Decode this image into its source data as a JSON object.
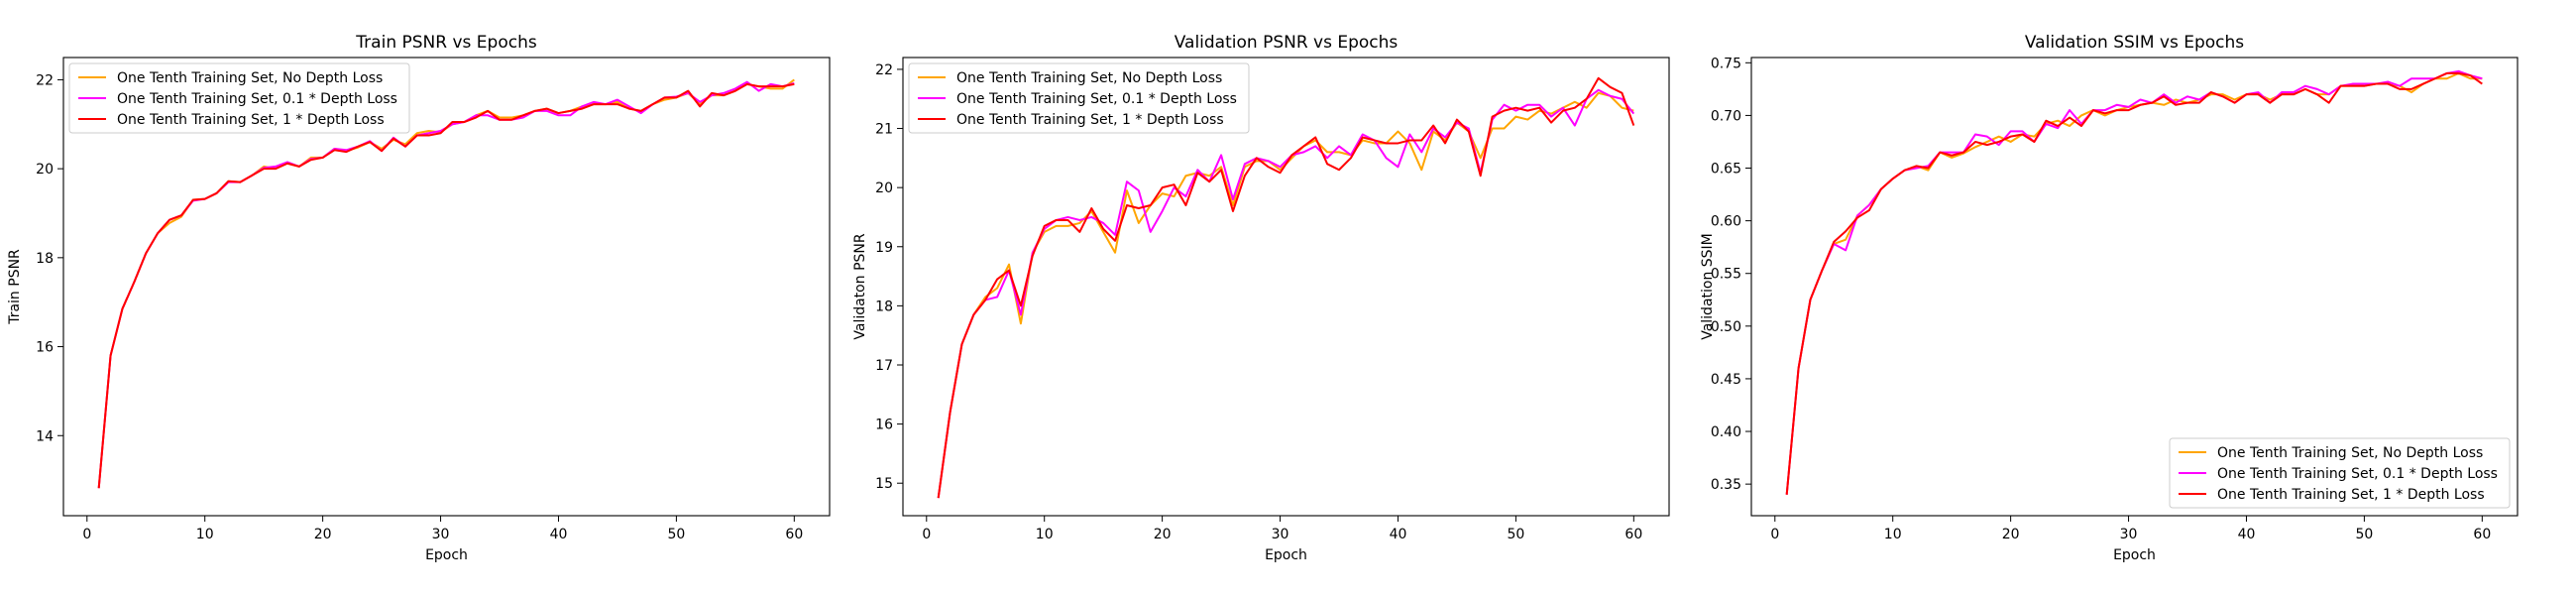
{
  "colors": {
    "no_depth": "#ffa500",
    "depth_01": "#ff00ff",
    "depth_1": "#ff0000"
  },
  "chart_data": [
    {
      "type": "line",
      "title": "Train PSNR vs Epochs",
      "xlabel": "Epoch",
      "ylabel": "Train PSNR",
      "xlim": [
        -2,
        63
      ],
      "ylim": [
        12.2,
        22.5
      ],
      "xticks": [
        0,
        10,
        20,
        30,
        40,
        50,
        60
      ],
      "yticks": [
        14,
        16,
        18,
        20,
        22
      ],
      "ytick_labels": [
        "14",
        "16",
        "18",
        "20",
        "22"
      ],
      "legend_position": "top-left",
      "x": [
        1,
        2,
        3,
        4,
        5,
        6,
        7,
        8,
        9,
        10,
        11,
        12,
        13,
        14,
        15,
        16,
        17,
        18,
        19,
        20,
        21,
        22,
        23,
        24,
        25,
        26,
        27,
        28,
        29,
        30,
        31,
        32,
        33,
        34,
        35,
        36,
        37,
        38,
        39,
        40,
        41,
        42,
        43,
        44,
        45,
        46,
        47,
        48,
        49,
        50,
        51,
        52,
        53,
        54,
        55,
        56,
        57,
        58,
        59,
        60
      ],
      "series": [
        {
          "name": "One Tenth Training Set, No Depth Loss",
          "values": [
            12.82,
            15.8,
            16.85,
            17.45,
            18.1,
            18.55,
            18.78,
            18.92,
            19.3,
            19.32,
            19.45,
            19.72,
            19.7,
            19.85,
            20.05,
            20.0,
            20.12,
            20.05,
            20.25,
            20.25,
            20.45,
            20.4,
            20.48,
            20.6,
            20.45,
            20.65,
            20.55,
            20.8,
            20.85,
            20.82,
            21.0,
            21.05,
            21.2,
            21.3,
            21.15,
            21.15,
            21.2,
            21.3,
            21.35,
            21.25,
            21.3,
            21.4,
            21.45,
            21.45,
            21.5,
            21.35,
            21.3,
            21.45,
            21.55,
            21.6,
            21.7,
            21.45,
            21.65,
            21.65,
            21.75,
            21.9,
            21.85,
            21.8,
            21.8,
            22.0
          ]
        },
        {
          "name": "One Tenth Training Set, 0.1 * Depth Loss",
          "values": [
            12.82,
            15.8,
            16.85,
            17.45,
            18.1,
            18.55,
            18.85,
            18.95,
            19.28,
            19.32,
            19.45,
            19.7,
            19.7,
            19.85,
            20.02,
            20.05,
            20.15,
            20.05,
            20.22,
            20.25,
            20.45,
            20.42,
            20.5,
            20.62,
            20.4,
            20.7,
            20.5,
            20.75,
            20.8,
            20.85,
            21.0,
            21.05,
            21.2,
            21.2,
            21.1,
            21.1,
            21.15,
            21.3,
            21.3,
            21.2,
            21.2,
            21.4,
            21.5,
            21.45,
            21.55,
            21.4,
            21.25,
            21.45,
            21.6,
            21.62,
            21.7,
            21.5,
            21.65,
            21.7,
            21.8,
            21.95,
            21.75,
            21.9,
            21.85,
            21.92
          ]
        },
        {
          "name": "One Tenth Training Set, 1 * Depth Loss",
          "values": [
            12.82,
            15.8,
            16.85,
            17.45,
            18.1,
            18.55,
            18.85,
            18.95,
            19.3,
            19.32,
            19.45,
            19.72,
            19.7,
            19.85,
            20.0,
            20.0,
            20.12,
            20.05,
            20.2,
            20.25,
            20.42,
            20.38,
            20.5,
            20.6,
            20.4,
            20.68,
            20.5,
            20.75,
            20.75,
            20.8,
            21.05,
            21.05,
            21.15,
            21.3,
            21.1,
            21.1,
            21.2,
            21.3,
            21.35,
            21.25,
            21.3,
            21.35,
            21.45,
            21.45,
            21.45,
            21.35,
            21.3,
            21.45,
            21.6,
            21.6,
            21.75,
            21.4,
            21.7,
            21.65,
            21.75,
            21.9,
            21.85,
            21.85,
            21.85,
            21.9
          ]
        }
      ]
    },
    {
      "type": "line",
      "title": "Validation PSNR vs Epochs",
      "xlabel": "Epoch",
      "ylabel": "Validaton PSNR",
      "xlim": [
        -2,
        63
      ],
      "ylim": [
        14.45,
        22.2
      ],
      "xticks": [
        0,
        10,
        20,
        30,
        40,
        50,
        60
      ],
      "yticks": [
        15,
        16,
        17,
        18,
        19,
        20,
        21,
        22
      ],
      "ytick_labels": [
        "15",
        "16",
        "17",
        "18",
        "19",
        "20",
        "21",
        "22"
      ],
      "legend_position": "top-left",
      "x": [
        1,
        2,
        3,
        4,
        5,
        6,
        7,
        8,
        9,
        10,
        11,
        12,
        13,
        14,
        15,
        16,
        17,
        18,
        19,
        20,
        21,
        22,
        23,
        24,
        25,
        26,
        27,
        28,
        29,
        30,
        31,
        32,
        33,
        34,
        35,
        36,
        37,
        38,
        39,
        40,
        41,
        42,
        43,
        44,
        45,
        46,
        47,
        48,
        49,
        50,
        51,
        52,
        53,
        54,
        55,
        56,
        57,
        58,
        59,
        60
      ],
      "series": [
        {
          "name": "One Tenth Training Set, No Depth Loss",
          "values": [
            14.75,
            16.2,
            17.35,
            17.85,
            18.15,
            18.3,
            18.7,
            17.7,
            18.9,
            19.25,
            19.35,
            19.35,
            19.4,
            19.6,
            19.25,
            18.9,
            19.95,
            19.4,
            19.7,
            19.9,
            19.85,
            20.2,
            20.25,
            20.2,
            20.35,
            19.7,
            20.35,
            20.45,
            20.45,
            20.3,
            20.5,
            20.7,
            20.8,
            20.6,
            20.6,
            20.55,
            20.8,
            20.75,
            20.75,
            20.95,
            20.75,
            20.3,
            20.95,
            20.8,
            21.1,
            20.95,
            20.5,
            21.0,
            21.0,
            21.2,
            21.15,
            21.3,
            21.25,
            21.35,
            21.45,
            21.35,
            21.6,
            21.55,
            21.35,
            21.3
          ]
        },
        {
          "name": "One Tenth Training Set, 0.1 * Depth Loss",
          "values": [
            14.75,
            16.2,
            17.35,
            17.85,
            18.1,
            18.15,
            18.6,
            17.85,
            18.9,
            19.3,
            19.45,
            19.5,
            19.45,
            19.5,
            19.4,
            19.2,
            20.1,
            19.95,
            19.25,
            19.6,
            20.0,
            19.85,
            20.3,
            20.1,
            20.55,
            19.8,
            20.4,
            20.5,
            20.45,
            20.35,
            20.55,
            20.6,
            20.7,
            20.5,
            20.7,
            20.55,
            20.9,
            20.8,
            20.5,
            20.35,
            20.9,
            20.6,
            21.0,
            20.85,
            21.1,
            21.0,
            20.25,
            21.15,
            21.4,
            21.3,
            21.4,
            21.4,
            21.2,
            21.35,
            21.05,
            21.5,
            21.65,
            21.55,
            21.5,
            21.25
          ]
        },
        {
          "name": "One Tenth Training Set, 1 * Depth Loss",
          "values": [
            14.75,
            16.2,
            17.35,
            17.85,
            18.1,
            18.45,
            18.6,
            18.0,
            18.85,
            19.35,
            19.45,
            19.45,
            19.25,
            19.65,
            19.3,
            19.1,
            19.7,
            19.65,
            19.7,
            20.0,
            20.05,
            19.7,
            20.25,
            20.1,
            20.3,
            19.6,
            20.2,
            20.5,
            20.35,
            20.25,
            20.55,
            20.7,
            20.85,
            20.4,
            20.3,
            20.5,
            20.85,
            20.8,
            20.75,
            20.75,
            20.8,
            20.8,
            21.05,
            20.75,
            21.15,
            20.95,
            20.2,
            21.2,
            21.3,
            21.35,
            21.3,
            21.35,
            21.1,
            21.3,
            21.35,
            21.5,
            21.85,
            21.7,
            21.6,
            21.05
          ]
        }
      ]
    },
    {
      "type": "line",
      "title": "Validation SSIM vs Epochs",
      "xlabel": "Epoch",
      "ylabel": "Validation SSIM",
      "xlim": [
        -2,
        63
      ],
      "ylim": [
        0.32,
        0.755
      ],
      "xticks": [
        0,
        10,
        20,
        30,
        40,
        50,
        60
      ],
      "yticks": [
        0.35,
        0.4,
        0.45,
        0.5,
        0.55,
        0.6,
        0.65,
        0.7,
        0.75
      ],
      "ytick_labels": [
        "0.35",
        "0.40",
        "0.45",
        "0.50",
        "0.55",
        "0.60",
        "0.65",
        "0.70",
        "0.75"
      ],
      "legend_position": "bottom-right",
      "x": [
        1,
        2,
        3,
        4,
        5,
        6,
        7,
        8,
        9,
        10,
        11,
        12,
        13,
        14,
        15,
        16,
        17,
        18,
        19,
        20,
        21,
        22,
        23,
        24,
        25,
        26,
        27,
        28,
        29,
        30,
        31,
        32,
        33,
        34,
        35,
        36,
        37,
        38,
        39,
        40,
        41,
        42,
        43,
        44,
        45,
        46,
        47,
        48,
        49,
        50,
        51,
        52,
        53,
        54,
        55,
        56,
        57,
        58,
        59,
        60
      ],
      "series": [
        {
          "name": "One Tenth Training Set, No Depth Loss",
          "values": [
            0.34,
            0.46,
            0.525,
            0.553,
            0.578,
            0.582,
            0.605,
            0.615,
            0.63,
            0.64,
            0.648,
            0.652,
            0.648,
            0.665,
            0.66,
            0.664,
            0.67,
            0.675,
            0.68,
            0.675,
            0.682,
            0.68,
            0.692,
            0.695,
            0.69,
            0.7,
            0.705,
            0.7,
            0.705,
            0.708,
            0.71,
            0.712,
            0.71,
            0.715,
            0.712,
            0.715,
            0.72,
            0.72,
            0.715,
            0.72,
            0.72,
            0.715,
            0.72,
            0.72,
            0.725,
            0.72,
            0.72,
            0.728,
            0.728,
            0.728,
            0.73,
            0.73,
            0.728,
            0.722,
            0.73,
            0.735,
            0.735,
            0.74,
            0.735,
            0.735
          ]
        },
        {
          "name": "One Tenth Training Set, 0.1 * Depth Loss",
          "values": [
            0.34,
            0.46,
            0.525,
            0.553,
            0.578,
            0.572,
            0.605,
            0.615,
            0.63,
            0.64,
            0.648,
            0.65,
            0.652,
            0.665,
            0.665,
            0.665,
            0.682,
            0.68,
            0.672,
            0.685,
            0.685,
            0.675,
            0.692,
            0.688,
            0.705,
            0.692,
            0.705,
            0.705,
            0.71,
            0.708,
            0.715,
            0.712,
            0.72,
            0.712,
            0.718,
            0.715,
            0.722,
            0.718,
            0.712,
            0.72,
            0.722,
            0.712,
            0.722,
            0.722,
            0.728,
            0.725,
            0.72,
            0.728,
            0.73,
            0.73,
            0.73,
            0.732,
            0.728,
            0.735,
            0.735,
            0.735,
            0.74,
            0.742,
            0.738,
            0.735
          ]
        },
        {
          "name": "One Tenth Training Set, 1 * Depth Loss",
          "values": [
            0.34,
            0.46,
            0.525,
            0.553,
            0.58,
            0.59,
            0.603,
            0.61,
            0.63,
            0.64,
            0.648,
            0.652,
            0.65,
            0.665,
            0.662,
            0.665,
            0.675,
            0.672,
            0.675,
            0.68,
            0.682,
            0.675,
            0.695,
            0.69,
            0.698,
            0.69,
            0.705,
            0.702,
            0.705,
            0.705,
            0.71,
            0.712,
            0.718,
            0.71,
            0.712,
            0.712,
            0.722,
            0.718,
            0.712,
            0.72,
            0.72,
            0.712,
            0.72,
            0.72,
            0.725,
            0.72,
            0.712,
            0.728,
            0.728,
            0.728,
            0.73,
            0.73,
            0.725,
            0.725,
            0.73,
            0.735,
            0.74,
            0.74,
            0.738,
            0.73
          ]
        }
      ]
    }
  ]
}
